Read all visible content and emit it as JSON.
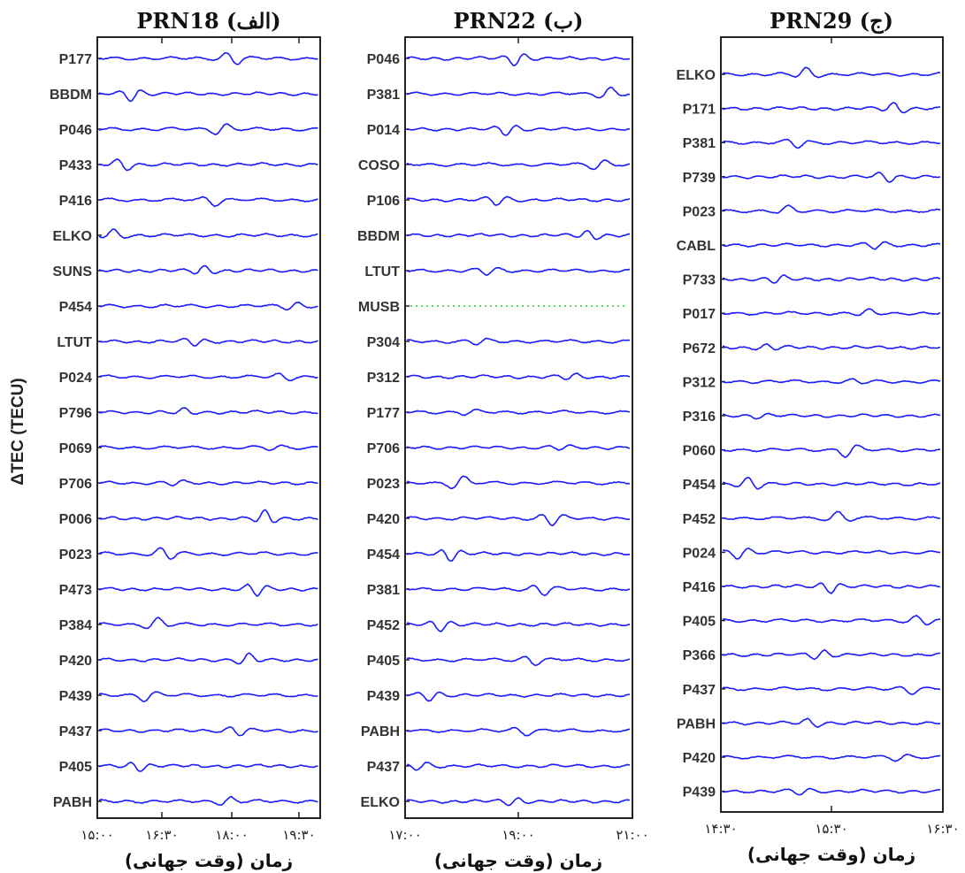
{
  "figure": {
    "ylabel": "ΔTEC (TECU)",
    "colors": {
      "trace": "#1a1aff",
      "gap": "#22cc22",
      "axes": "#222222"
    }
  },
  "chart_data": [
    {
      "type": "line",
      "title": "PRN18 (الف)",
      "xlabel": "زمان (وقت جهانی)",
      "x_ticks": [
        "۱۵:۰۰",
        "۱۶:۳۰",
        "۱۸:۰۰",
        "۱۹:۳۰"
      ],
      "x_range_hours": [
        15.0,
        19.5
      ],
      "series": [
        "P177",
        "BBDM",
        "P046",
        "P433",
        "P416",
        "ELKO",
        "SUNS",
        "P454",
        "LTUT",
        "P024",
        "P796",
        "P069",
        "P706",
        "P006",
        "P023",
        "P473",
        "P384",
        "P420",
        "P439",
        "P437",
        "P405",
        "PABH"
      ],
      "gap_series": []
    },
    {
      "type": "line",
      "title": "PRN22 (ب)",
      "xlabel": "زمان (وقت جهانی)",
      "x_ticks": [
        "۱۷:۰۰",
        "۱۹:۰۰",
        "۲۱:۰۰"
      ],
      "x_range_hours": [
        17.0,
        21.0
      ],
      "series": [
        "P046",
        "P381",
        "P014",
        "COSO",
        "P106",
        "BBDM",
        "LTUT",
        "MUSB",
        "P304",
        "P312",
        "P177",
        "P706",
        "P023",
        "P420",
        "P454",
        "P381",
        "P452",
        "P405",
        "P439",
        "PABH",
        "P437",
        "ELKO"
      ],
      "gap_series": [
        "MUSB"
      ]
    },
    {
      "type": "line",
      "title": "PRN29 (ج)",
      "xlabel": "زمان (وقت جهانی)",
      "x_ticks": [
        "۱۴:۳۰",
        "۱۵:۳۰",
        "۱۶:۳۰"
      ],
      "x_range_hours": [
        14.5,
        16.5
      ],
      "series": [
        "ELKO",
        "P171",
        "P381",
        "P739",
        "P023",
        "CABL",
        "P733",
        "P017",
        "P672",
        "P312",
        "P316",
        "P060",
        "P454",
        "P452",
        "P024",
        "P416",
        "P405",
        "P366",
        "P437",
        "PABH",
        "P420",
        "P439"
      ],
      "gap_series": []
    }
  ]
}
